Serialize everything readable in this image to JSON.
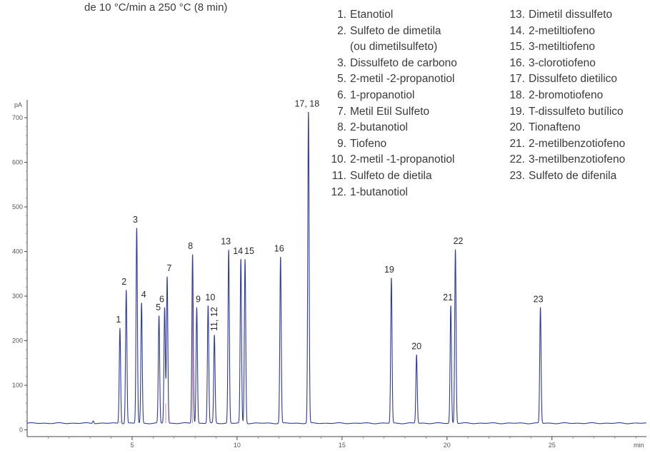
{
  "header_note": "de 10 °C/min a 250 °C (8 min)",
  "legend_left": [
    {
      "num": "1.",
      "name": "Etanotiol"
    },
    {
      "num": "2.",
      "name": "Sulfeto de dimetila"
    },
    {
      "num": "",
      "name": "(ou dimetilsulfeto)"
    },
    {
      "num": "3.",
      "name": "Dissulfeto de carbono"
    },
    {
      "num": "5.",
      "name": "2-metil -2-propanotiol"
    },
    {
      "num": "6.",
      "name": "1-propanotiol"
    },
    {
      "num": "7.",
      "name": "Metil Etil Sulfeto"
    },
    {
      "num": "8.",
      "name": "2-butanotiol"
    },
    {
      "num": "9.",
      "name": "Tiofeno"
    },
    {
      "num": "10.",
      "name": "2-metil -1-propanotiol"
    },
    {
      "num": "11.",
      "name": "Sulfeto de dietila"
    },
    {
      "num": "12.",
      "name": "1-butanotiol"
    }
  ],
  "legend_right": [
    {
      "num": "13.",
      "name": "Dimetil dissulfeto"
    },
    {
      "num": "14.",
      "name": "2-metiltiofeno"
    },
    {
      "num": "15.",
      "name": "3-metiltiofeno"
    },
    {
      "num": "16.",
      "name": "3-clorotiofeno"
    },
    {
      "num": "17.",
      "name": "Dissulfeto dietilico"
    },
    {
      "num": "18.",
      "name": "2-bromotiofeno"
    },
    {
      "num": "19.",
      "name": "T-dissulfeto butílico"
    },
    {
      "num": "20.",
      "name": "Tionafteno"
    },
    {
      "num": "21.",
      "name": "2-metilbenzotiofeno"
    },
    {
      "num": "22.",
      "name": "3-metilbenzotiofeno"
    },
    {
      "num": "23.",
      "name": "Sulfeto de difenila"
    }
  ],
  "chart_data": {
    "type": "line",
    "title": "",
    "xlabel": "min",
    "ylabel": "pA",
    "xlim": [
      0,
      29.5
    ],
    "ylim": [
      -15,
      740
    ],
    "baseline": 15,
    "x_ticks": [
      5,
      10,
      15,
      20,
      25
    ],
    "y_ticks": [
      0,
      100,
      200,
      300,
      400,
      500,
      600,
      700
    ],
    "line_color": "#2d3a9e",
    "secondary_color": "#d0569b",
    "peaks": [
      {
        "label": "1",
        "x": 4.42,
        "y": 228
      },
      {
        "label": "2",
        "x": 4.72,
        "y": 313
      },
      {
        "label": "3",
        "x": 5.22,
        "y": 452
      },
      {
        "label": "4",
        "x": 5.45,
        "y": 284
      },
      {
        "label": "5",
        "x": 6.28,
        "y": 255
      },
      {
        "label": "6",
        "x": 6.55,
        "y": 274
      },
      {
        "label": "7",
        "x": 6.67,
        "y": 343
      },
      {
        "label": "8",
        "x": 7.88,
        "y": 393
      },
      {
        "label": "9",
        "x": 8.08,
        "y": 274
      },
      {
        "label": "10",
        "x": 8.62,
        "y": 278
      },
      {
        "label": "11, 12",
        "x": 8.92,
        "y": 212
      },
      {
        "label": "13",
        "x": 9.6,
        "y": 403
      },
      {
        "label": "14",
        "x": 10.18,
        "y": 382
      },
      {
        "label": "15",
        "x": 10.38,
        "y": 382
      },
      {
        "label": "16",
        "x": 12.07,
        "y": 387
      },
      {
        "label": "17, 18",
        "x": 13.4,
        "y": 712
      },
      {
        "label": "19",
        "x": 17.35,
        "y": 340
      },
      {
        "label": "20",
        "x": 18.55,
        "y": 168
      },
      {
        "label": "21",
        "x": 20.18,
        "y": 278
      },
      {
        "label": "22",
        "x": 20.4,
        "y": 404
      },
      {
        "label": "23",
        "x": 24.45,
        "y": 274
      }
    ]
  }
}
